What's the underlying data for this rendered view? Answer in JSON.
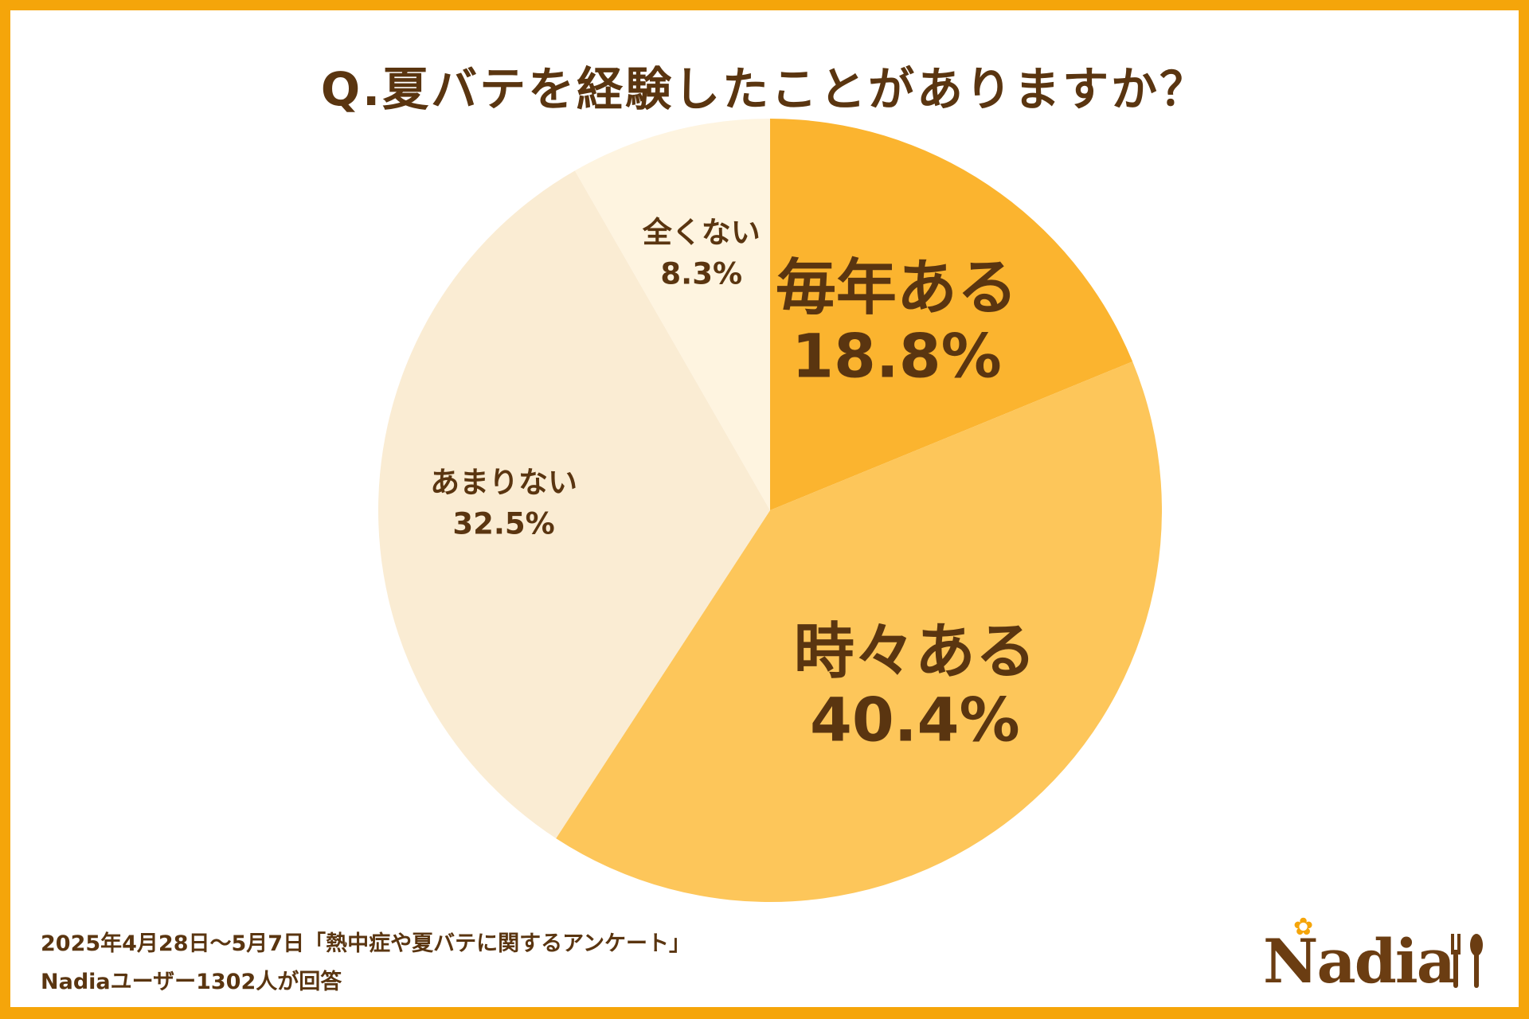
{
  "title": "Q.夏バテを経験したことがありますか？",
  "chart_data": {
    "type": "pie",
    "title": "Q.夏バテを経験したことがありますか？",
    "slices": [
      {
        "label": "毎年ある",
        "value": 18.8,
        "display": "18.8%",
        "color": "#fbb42f",
        "text_size": "large"
      },
      {
        "label": "時々ある",
        "value": 40.4,
        "display": "40.4%",
        "color": "#fdc65a",
        "text_size": "large"
      },
      {
        "label": "あまりない",
        "value": 32.5,
        "display": "32.5%",
        "color": "#faecd3",
        "text_size": "small"
      },
      {
        "label": "全くない",
        "value": 8.3,
        "display": "8.3%",
        "color": "#fef4e0",
        "text_size": "small"
      }
    ],
    "start": "top",
    "direction": "clockwise"
  },
  "footnote": {
    "line1": "2025年4月28日～5月7日「熱中症や夏バテに関するアンケート」",
    "line2": "Nadiaユーザー1302人が回答"
  },
  "logo": {
    "text": "Nadia"
  },
  "colors": {
    "border": "#f5a50a",
    "text": "#5a3510",
    "logo": "#6b3d12"
  },
  "icons": {
    "logo_star": "flower-star-icon",
    "logo_utensils": "fork-spoon-icon"
  }
}
